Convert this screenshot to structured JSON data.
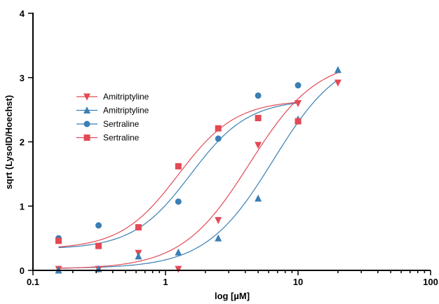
{
  "chart_data": {
    "type": "scatter",
    "title": "",
    "xlabel": "log [µM]",
    "ylabel": "sqrt (LysoID/Hoechst)",
    "xscale": "log",
    "xlim": [
      0.1,
      100
    ],
    "ylim": [
      0,
      4
    ],
    "x_ticks": [
      {
        "value": 0.1,
        "label": "0.1"
      },
      {
        "value": 1,
        "label": "1"
      },
      {
        "value": 10,
        "label": "10"
      },
      {
        "value": 100,
        "label": "100"
      }
    ],
    "y_ticks": [
      {
        "value": 0,
        "label": "0"
      },
      {
        "value": 1,
        "label": "1"
      },
      {
        "value": 2,
        "label": "2"
      },
      {
        "value": 3,
        "label": "3"
      },
      {
        "value": 4,
        "label": "4"
      }
    ],
    "grid": false,
    "legend_position": "upper-left",
    "series": [
      {
        "name": "Amitriptyline",
        "color": "#e34a55",
        "marker": "triangle-down",
        "x": [
          0.156,
          0.3125,
          0.625,
          1.25,
          2.5,
          5,
          10,
          20
        ],
        "y": [
          0.02,
          0.02,
          0.27,
          0.02,
          0.78,
          1.95,
          2.6,
          2.92
        ],
        "fit": {
          "bottom": 0.02,
          "top": 3.3,
          "ec50": 4.3,
          "hill": 1.7
        }
      },
      {
        "name": "Amitriptyline",
        "color": "#3a7fb4",
        "marker": "triangle-up",
        "x": [
          0.156,
          0.3125,
          0.625,
          1.25,
          2.5,
          5,
          10,
          20
        ],
        "y": [
          0.0,
          0.02,
          0.22,
          0.28,
          0.5,
          1.12,
          2.35,
          3.12
        ],
        "fit": {
          "bottom": 0.03,
          "top": 3.4,
          "ec50": 6.5,
          "hill": 1.7
        }
      },
      {
        "name": "Sertraline",
        "color": "#3a7fb4",
        "marker": "circle",
        "x": [
          0.156,
          0.3125,
          0.625,
          1.25,
          2.5,
          5,
          10
        ],
        "y": [
          0.5,
          0.7,
          0.67,
          1.07,
          2.05,
          2.72,
          2.88
        ],
        "fit": {
          "bottom": 0.33,
          "top": 2.66,
          "ec50": 1.55,
          "hill": 2.0
        }
      },
      {
        "name": "Sertraline",
        "color": "#e34a55",
        "marker": "square",
        "x": [
          0.156,
          0.3125,
          0.625,
          1.25,
          2.5,
          5,
          10
        ],
        "y": [
          0.46,
          0.38,
          0.67,
          1.62,
          2.21,
          2.37,
          2.32
        ],
        "fit": {
          "bottom": 0.33,
          "top": 2.65,
          "ec50": 1.25,
          "hill": 2.0
        }
      }
    ]
  }
}
